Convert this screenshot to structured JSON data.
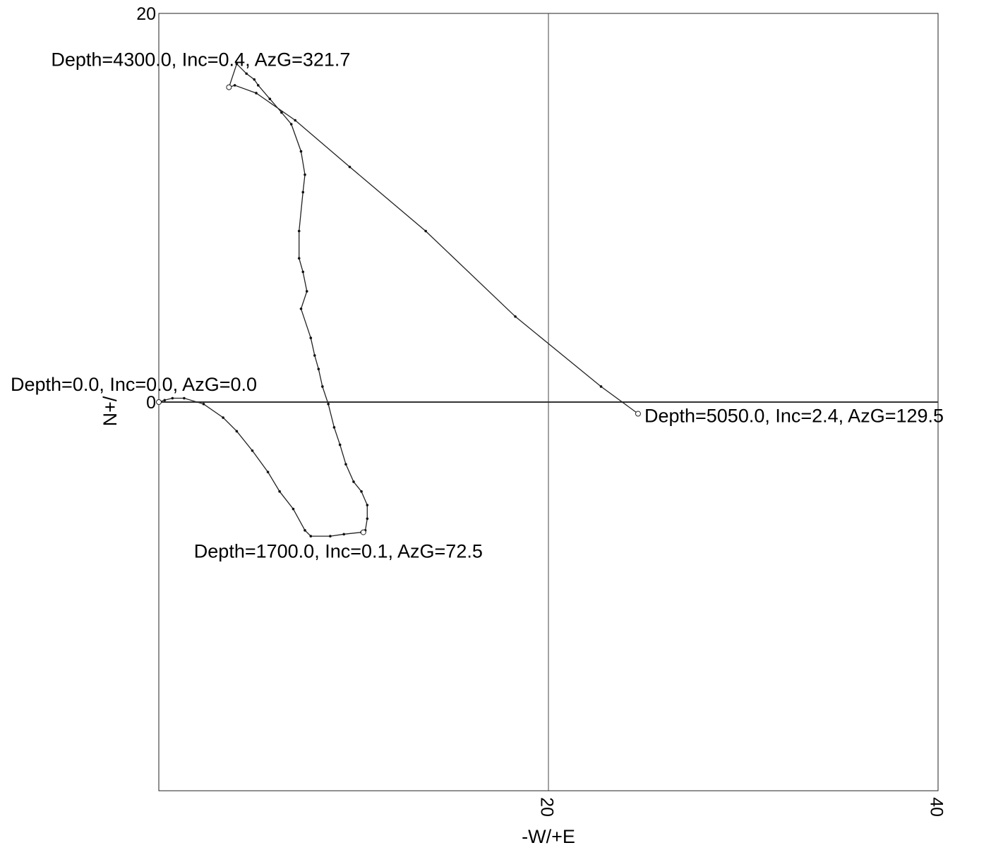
{
  "chart_data": {
    "type": "line",
    "title": "",
    "xlabel": "-W/+E",
    "ylabel": "N+/",
    "xlim": [
      0,
      40
    ],
    "ylim": [
      -20,
      20
    ],
    "x_ticks": [
      {
        "value": 20,
        "label": "20"
      },
      {
        "value": 40,
        "label": "40"
      }
    ],
    "y_ticks": [
      {
        "value": 20,
        "label": "20"
      },
      {
        "value": 0,
        "label": "0"
      }
    ],
    "reference_lines": {
      "x": [
        20
      ],
      "y": [
        0
      ]
    },
    "grid": false,
    "series": [
      {
        "x": [
          0.0,
          0.3,
          0.7,
          1.3,
          2.3,
          3.3,
          4.0,
          4.8,
          5.6,
          6.2,
          6.9,
          7.5,
          7.8,
          8.8,
          9.5,
          10.4,
          10.6,
          10.7,
          10.7,
          10.4,
          10.0,
          9.6,
          9.3,
          9.0,
          8.7,
          8.4,
          8.2,
          8.0,
          7.8,
          7.3,
          7.6,
          7.4,
          7.2,
          7.2,
          7.4,
          7.5,
          7.3,
          6.8,
          6.3,
          5.7,
          5.1,
          4.9,
          4.5,
          4.0,
          3.6,
          3.9,
          5.0,
          7.0,
          9.8,
          13.7,
          18.3,
          22.7,
          24.6
        ],
        "y": [
          0.0,
          0.1,
          0.2,
          0.2,
          -0.1,
          -0.8,
          -1.5,
          -2.5,
          -3.6,
          -4.6,
          -5.5,
          -6.6,
          -6.9,
          -6.9,
          -6.8,
          -6.7,
          -6.6,
          -6.0,
          -5.3,
          -4.6,
          -4.1,
          -3.2,
          -2.2,
          -1.3,
          -0.1,
          0.8,
          1.7,
          2.4,
          3.3,
          4.8,
          5.7,
          6.7,
          7.4,
          8.8,
          10.8,
          11.7,
          12.9,
          14.3,
          14.9,
          15.6,
          16.3,
          16.6,
          16.9,
          17.4,
          16.2,
          16.3,
          15.9,
          14.5,
          12.1,
          8.8,
          4.4,
          0.8,
          -0.6
        ]
      }
    ],
    "markers": [
      {
        "x": 0.0,
        "y": 0.0
      },
      {
        "x": 10.5,
        "y": -6.7
      },
      {
        "x": 3.6,
        "y": 16.2
      },
      {
        "x": 24.6,
        "y": -0.6
      }
    ],
    "annotations": [
      {
        "text": "Depth=0.0, Inc=0.0, AzG=0.0",
        "x": 0.0,
        "y": 0.0
      },
      {
        "text": "Depth=1700.0, Inc=0.1, AzG=72.5",
        "x": 10.5,
        "y": -6.7
      },
      {
        "text": "Depth=4300.0, Inc=0.4, AzG=321.7",
        "x": 3.6,
        "y": 16.2
      },
      {
        "text": "Depth=5050.0, Inc=2.4, AzG=129.5",
        "x": 24.6,
        "y": -0.6
      }
    ]
  }
}
